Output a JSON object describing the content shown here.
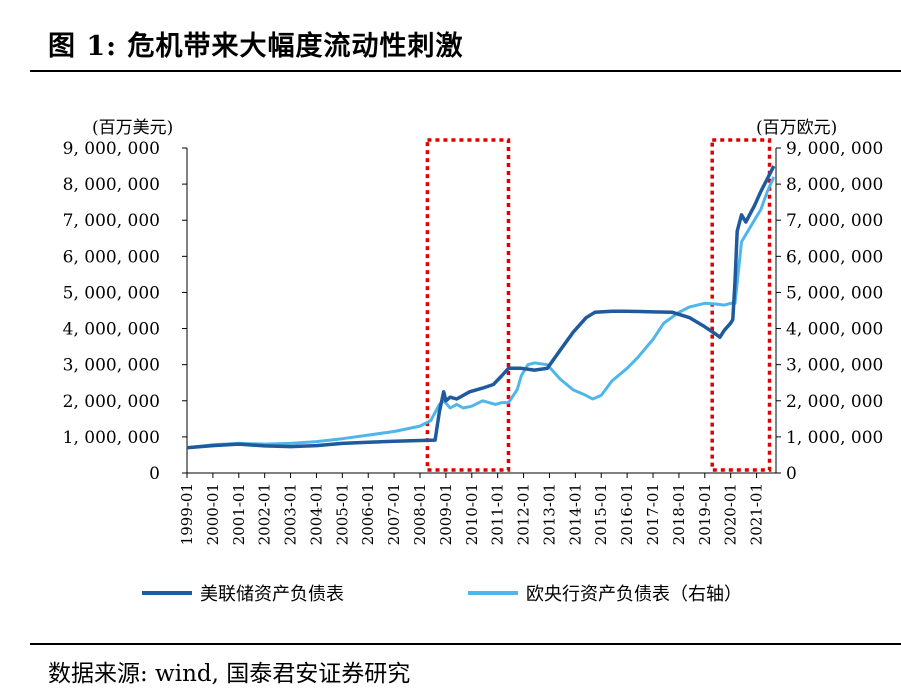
{
  "header": {
    "title": "图  1:  危机带来大幅度流动性刺激"
  },
  "footer": {
    "source": "数据来源:  wind,  国泰君安证券研究"
  },
  "chart_data": {
    "type": "line",
    "left_unit": "(百万美元)",
    "right_unit": "(百万欧元)",
    "ylim": [
      0,
      9000000
    ],
    "yticks": [
      0,
      1000000,
      2000000,
      3000000,
      4000000,
      5000000,
      6000000,
      7000000,
      8000000,
      9000000
    ],
    "ytick_labels": [
      "0",
      "1, 000, 000",
      "2, 000, 000",
      "3, 000, 000",
      "4, 000, 000",
      "5, 000, 000",
      "6, 000, 000",
      "7, 000, 000",
      "8, 000, 000",
      "9, 000, 000"
    ],
    "right_ytick_labels": [
      "0",
      "1, 000, 000",
      "2, 000, 000",
      "3, 000, 000",
      "4, 000, 000",
      "5, 000, 000",
      "6, 000, 000",
      "7, 000, 000",
      "8, 000, 000",
      "9, 000, 000"
    ],
    "x_ticks": [
      "1999-01",
      "2000-01",
      "2001-01",
      "2002-01",
      "2003-01",
      "2004-01",
      "2005-01",
      "2006-01",
      "2007-01",
      "2008-01",
      "2009-01",
      "2010-01",
      "2011-01",
      "2012-01",
      "2013-01",
      "2014-01",
      "2015-01",
      "2016-01",
      "2017-01",
      "2018-01",
      "2019-01",
      "2020-01",
      "2021-01"
    ],
    "xlim": [
      "1999-01",
      "2021-10"
    ],
    "highlight_periods": [
      [
        "2008-10",
        "2011-06"
      ],
      [
        "2019-10",
        "2021-07"
      ]
    ],
    "legend_position": "bottom",
    "grid": false,
    "colors": {
      "fed": "#1f5b9c",
      "ecb": "#4fb6ea",
      "highlight": "#e00000"
    },
    "series": [
      {
        "name": "美联储资产负债表",
        "axis": "left",
        "x": [
          "1999-01",
          "2000-01",
          "2001-01",
          "2002-01",
          "2003-01",
          "2004-01",
          "2005-01",
          "2006-01",
          "2007-01",
          "2008-01",
          "2008-08",
          "2008-10",
          "2008-12",
          "2009-01",
          "2009-03",
          "2009-06",
          "2009-09",
          "2009-12",
          "2010-03",
          "2010-06",
          "2010-11",
          "2011-03",
          "2011-06",
          "2011-12",
          "2012-06",
          "2012-12",
          "2013-06",
          "2013-12",
          "2014-06",
          "2014-10",
          "2015-06",
          "2016-01",
          "2017-01",
          "2017-10",
          "2018-06",
          "2019-01",
          "2019-06",
          "2019-08",
          "2019-10",
          "2020-01",
          "2020-02",
          "2020-03",
          "2020-04",
          "2020-06",
          "2020-08",
          "2020-12",
          "2021-03",
          "2021-06",
          "2021-09"
        ],
        "values": [
          700000,
          760000,
          800000,
          750000,
          730000,
          760000,
          820000,
          850000,
          880000,
          900000,
          910000,
          1700000,
          2250000,
          2000000,
          2100000,
          2050000,
          2150000,
          2250000,
          2300000,
          2350000,
          2450000,
          2700000,
          2900000,
          2900000,
          2850000,
          2900000,
          3400000,
          3900000,
          4300000,
          4450000,
          4480000,
          4480000,
          4460000,
          4450000,
          4300000,
          4050000,
          3850000,
          3760000,
          3950000,
          4150000,
          4250000,
          5300000,
          6700000,
          7150000,
          6950000,
          7400000,
          7800000,
          8150000,
          8500000
        ]
      },
      {
        "name": "欧央行资产负债表（右轴）",
        "axis": "right",
        "x": [
          "1999-01",
          "2000-01",
          "2001-01",
          "2002-01",
          "2003-01",
          "2004-01",
          "2005-01",
          "2006-01",
          "2007-01",
          "2008-01",
          "2008-06",
          "2008-10",
          "2008-12",
          "2009-03",
          "2009-06",
          "2009-09",
          "2010-01",
          "2010-06",
          "2010-12",
          "2011-03",
          "2011-06",
          "2011-10",
          "2011-12",
          "2012-03",
          "2012-06",
          "2012-12",
          "2013-06",
          "2013-12",
          "2014-06",
          "2014-09",
          "2015-01",
          "2015-06",
          "2016-01",
          "2016-06",
          "2017-01",
          "2017-06",
          "2018-01",
          "2018-06",
          "2019-01",
          "2019-06",
          "2019-10",
          "2020-01",
          "2020-03",
          "2020-06",
          "2020-12",
          "2021-03",
          "2021-06",
          "2021-09"
        ],
        "values": [
          700000,
          780000,
          820000,
          800000,
          820000,
          870000,
          950000,
          1050000,
          1150000,
          1300000,
          1450000,
          1900000,
          2000000,
          1800000,
          1900000,
          1800000,
          1850000,
          2000000,
          1900000,
          1950000,
          1950000,
          2300000,
          2700000,
          3000000,
          3050000,
          3000000,
          2600000,
          2300000,
          2150000,
          2050000,
          2150000,
          2550000,
          2900000,
          3200000,
          3700000,
          4150000,
          4450000,
          4600000,
          4700000,
          4680000,
          4650000,
          4700000,
          4700000,
          6400000,
          7000000,
          7300000,
          7800000,
          8200000
        ]
      }
    ]
  }
}
